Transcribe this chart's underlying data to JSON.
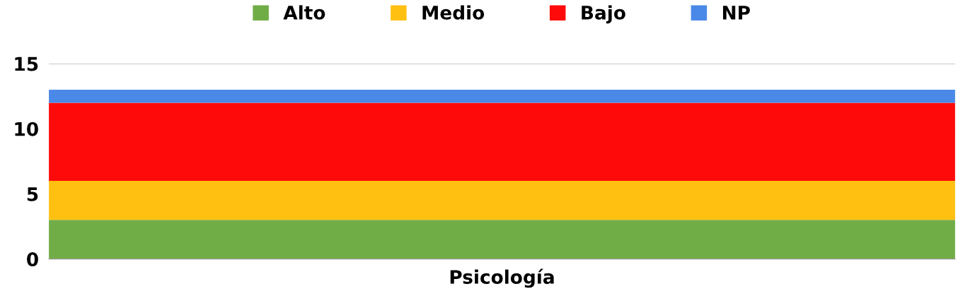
{
  "chart_data": {
    "type": "bar",
    "stacked": true,
    "categories": [
      "Psicología"
    ],
    "series": [
      {
        "name": "Alto",
        "color": "#70ad47",
        "values": [
          3
        ]
      },
      {
        "name": "Medio",
        "color": "#ffc012",
        "values": [
          3
        ]
      },
      {
        "name": "Bajo",
        "color": "#ff0a0a",
        "values": [
          6
        ]
      },
      {
        "name": "NP",
        "color": "#4a89e8",
        "values": [
          1
        ]
      }
    ],
    "ylim": [
      0,
      15
    ],
    "yticks": [
      0,
      5,
      10,
      15
    ],
    "grid": "y",
    "legend": "top"
  }
}
